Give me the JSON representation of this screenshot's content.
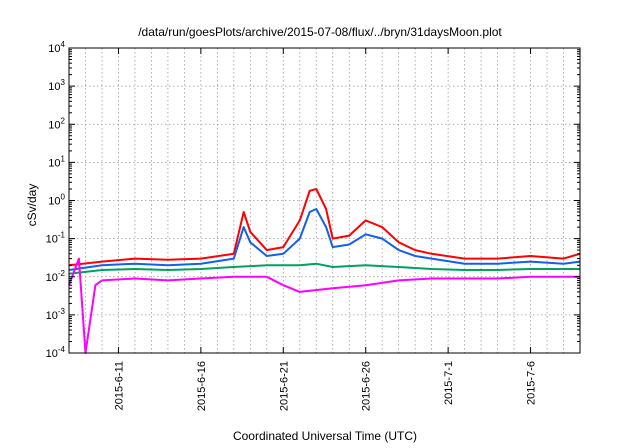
{
  "chart_data": {
    "type": "line",
    "title": "/data/run/goesPlots/archive/2015-07-08/flux/../bryn/31daysMoon.plot",
    "xlabel": "Coordinated Universal Time (UTC)",
    "ylabel": "cSv/day",
    "y_scale": "log",
    "ylim_exponents": [
      -4,
      4
    ],
    "y_ticks": [
      {
        "base": "10",
        "exp": "-4"
      },
      {
        "base": "10",
        "exp": "-3"
      },
      {
        "base": "10",
        "exp": "-2"
      },
      {
        "base": "10",
        "exp": "-1"
      },
      {
        "base": "10",
        "exp": "0"
      },
      {
        "base": "10",
        "exp": "1"
      },
      {
        "base": "10",
        "exp": "2"
      },
      {
        "base": "10",
        "exp": "3"
      },
      {
        "base": "10",
        "exp": "4"
      }
    ],
    "x_range": [
      "2015-06-08",
      "2015-07-09"
    ],
    "x_ticks": [
      {
        "label": "2015-6-11",
        "date": "2015-06-11"
      },
      {
        "label": "2015-6-16",
        "date": "2015-06-16"
      },
      {
        "label": "2015-6-21",
        "date": "2015-06-21"
      },
      {
        "label": "2015-6-26",
        "date": "2015-06-26"
      },
      {
        "label": "2015-7-1",
        "date": "2015-07-01"
      },
      {
        "label": "2015-7-6",
        "date": "2015-07-06"
      }
    ],
    "grid": true,
    "series": [
      {
        "color": "#ff0000",
        "points": [
          [
            "2015-06-08",
            0.02
          ],
          [
            "2015-06-10",
            0.025
          ],
          [
            "2015-06-12",
            0.03
          ],
          [
            "2015-06-14",
            0.028
          ],
          [
            "2015-06-16",
            0.03
          ],
          [
            "2015-06-18",
            0.04
          ],
          [
            "2015-06-18.6",
            0.5
          ],
          [
            "2015-06-19",
            0.15
          ],
          [
            "2015-06-20",
            0.05
          ],
          [
            "2015-06-21",
            0.06
          ],
          [
            "2015-06-22",
            0.3
          ],
          [
            "2015-06-22.6",
            1.8
          ],
          [
            "2015-06-23",
            2.0
          ],
          [
            "2015-06-23.6",
            0.6
          ],
          [
            "2015-06-24",
            0.1
          ],
          [
            "2015-06-25",
            0.12
          ],
          [
            "2015-06-26",
            0.3
          ],
          [
            "2015-06-27",
            0.2
          ],
          [
            "2015-06-28",
            0.08
          ],
          [
            "2015-06-29",
            0.05
          ],
          [
            "2015-06-30",
            0.04
          ],
          [
            "2015-07-02",
            0.03
          ],
          [
            "2015-07-04",
            0.03
          ],
          [
            "2015-07-06",
            0.035
          ],
          [
            "2015-07-08",
            0.03
          ],
          [
            "2015-07-09",
            0.04
          ]
        ]
      },
      {
        "color": "#1560e6",
        "points": [
          [
            "2015-06-08",
            0.015
          ],
          [
            "2015-06-10",
            0.02
          ],
          [
            "2015-06-12",
            0.022
          ],
          [
            "2015-06-14",
            0.02
          ],
          [
            "2015-06-16",
            0.022
          ],
          [
            "2015-06-18",
            0.03
          ],
          [
            "2015-06-18.6",
            0.2
          ],
          [
            "2015-06-19",
            0.08
          ],
          [
            "2015-06-20",
            0.035
          ],
          [
            "2015-06-21",
            0.04
          ],
          [
            "2015-06-22",
            0.1
          ],
          [
            "2015-06-22.6",
            0.5
          ],
          [
            "2015-06-23",
            0.6
          ],
          [
            "2015-06-23.6",
            0.2
          ],
          [
            "2015-06-24",
            0.06
          ],
          [
            "2015-06-25",
            0.07
          ],
          [
            "2015-06-26",
            0.13
          ],
          [
            "2015-06-27",
            0.1
          ],
          [
            "2015-06-28",
            0.05
          ],
          [
            "2015-06-29",
            0.035
          ],
          [
            "2015-06-30",
            0.03
          ],
          [
            "2015-07-02",
            0.022
          ],
          [
            "2015-07-04",
            0.022
          ],
          [
            "2015-07-06",
            0.025
          ],
          [
            "2015-07-08",
            0.022
          ],
          [
            "2015-07-09",
            0.025
          ]
        ]
      },
      {
        "color": "#00a060",
        "points": [
          [
            "2015-06-08",
            0.012
          ],
          [
            "2015-06-10",
            0.015
          ],
          [
            "2015-06-12",
            0.016
          ],
          [
            "2015-06-14",
            0.015
          ],
          [
            "2015-06-16",
            0.016
          ],
          [
            "2015-06-18",
            0.018
          ],
          [
            "2015-06-20",
            0.02
          ],
          [
            "2015-06-22",
            0.02
          ],
          [
            "2015-06-23",
            0.022
          ],
          [
            "2015-06-24",
            0.018
          ],
          [
            "2015-06-26",
            0.02
          ],
          [
            "2015-06-28",
            0.018
          ],
          [
            "2015-06-30",
            0.016
          ],
          [
            "2015-07-02",
            0.015
          ],
          [
            "2015-07-04",
            0.015
          ],
          [
            "2015-07-06",
            0.016
          ],
          [
            "2015-07-09",
            0.016
          ]
        ]
      },
      {
        "color": "#ff00ff",
        "points": [
          [
            "2015-06-08",
            0.006
          ],
          [
            "2015-06-08.6",
            0.03
          ],
          [
            "2015-06-09",
            0.0001
          ],
          [
            "2015-06-09.6",
            0.006
          ],
          [
            "2015-06-10",
            0.008
          ],
          [
            "2015-06-12",
            0.009
          ],
          [
            "2015-06-14",
            0.008
          ],
          [
            "2015-06-16",
            0.009
          ],
          [
            "2015-06-18",
            0.01
          ],
          [
            "2015-06-20",
            0.01
          ],
          [
            "2015-06-21",
            0.006
          ],
          [
            "2015-06-22",
            0.004
          ],
          [
            "2015-06-24",
            0.005
          ],
          [
            "2015-06-26",
            0.006
          ],
          [
            "2015-06-28",
            0.008
          ],
          [
            "2015-06-30",
            0.009
          ],
          [
            "2015-07-02",
            0.009
          ],
          [
            "2015-07-04",
            0.009
          ],
          [
            "2015-07-06",
            0.01
          ],
          [
            "2015-07-09",
            0.01
          ]
        ]
      }
    ]
  }
}
